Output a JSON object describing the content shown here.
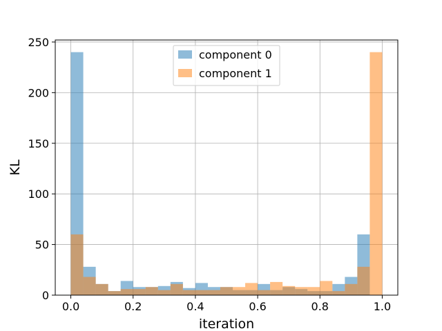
{
  "chart_data": {
    "type": "bar",
    "subtype": "overlaid-histogram",
    "xlabel": "iteration",
    "ylabel": "KL",
    "xlim": [
      -0.05,
      1.05
    ],
    "ylim": [
      0,
      252
    ],
    "xticks": [
      "0.0",
      "0.2",
      "0.4",
      "0.6",
      "0.8",
      "1.0"
    ],
    "yticks": [
      "0",
      "50",
      "100",
      "150",
      "200",
      "250"
    ],
    "grid": true,
    "legend_position": "top-center",
    "bins": 25,
    "bin_range": [
      0,
      1
    ],
    "series": [
      {
        "name": "component 0",
        "color": "#1f77b4",
        "alpha": 0.5,
        "values": [
          240,
          28,
          11,
          4,
          14,
          8,
          8,
          9,
          13,
          7,
          12,
          8,
          8,
          5,
          5,
          11,
          5,
          8,
          6,
          4,
          4,
          11,
          18,
          60,
          0
        ]
      },
      {
        "name": "component 1",
        "color": "#ff7f0e",
        "alpha": 0.5,
        "values": [
          60,
          18,
          11,
          4,
          6,
          6,
          8,
          5,
          11,
          5,
          5,
          5,
          8,
          8,
          12,
          5,
          13,
          9,
          8,
          8,
          14,
          4,
          11,
          28,
          240
        ]
      }
    ]
  }
}
